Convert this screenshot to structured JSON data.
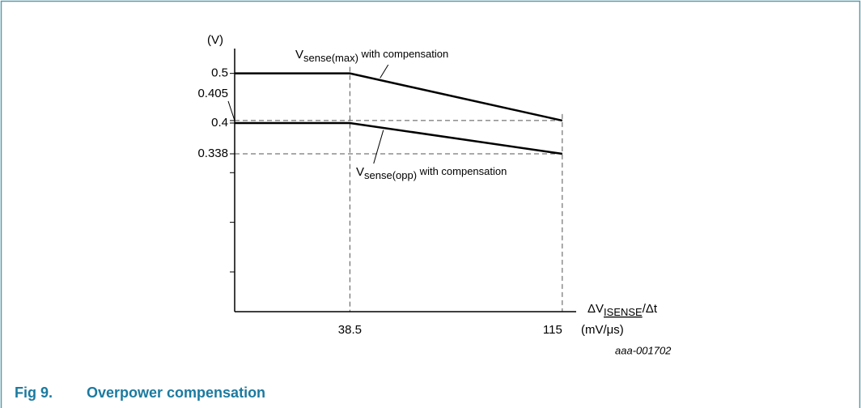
{
  "chart_data": {
    "type": "line",
    "caption_label": "Fig 9.",
    "title": "Overpower compensation",
    "note": "aaa-001702",
    "y_label": "(V)",
    "x_label": {
      "main": "ΔV",
      "sub": "ISENSE",
      "rest": "/Δt"
    },
    "x_unit": "(mV/μs)",
    "x": [
      -3,
      38.5,
      115
    ],
    "series": [
      {
        "name": {
          "main": "V",
          "sub": "sense(max)",
          "rest": " with compensation"
        },
        "color": "#000000",
        "values": [
          0.5,
          0.5,
          0.405
        ]
      },
      {
        "name": {
          "main": "V",
          "sub": "sense(opp)",
          "rest": " with compensation"
        },
        "color": "#000000",
        "values": [
          0.4,
          0.4,
          0.338
        ]
      }
    ],
    "xlim": [
      -3,
      120
    ],
    "ylim": [
      0.02,
      0.55
    ],
    "xticks": [
      38.5,
      115
    ],
    "yticks": [
      0.5,
      0.405,
      0.4,
      0.338
    ],
    "yminor_ticks": [
      0.3,
      0.2,
      0.1
    ]
  }
}
